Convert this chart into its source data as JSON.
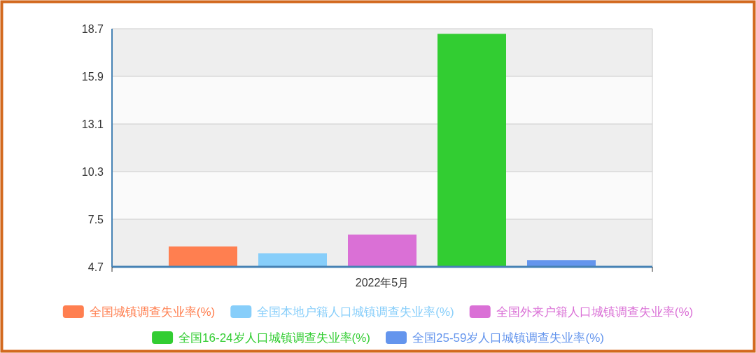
{
  "chart_data": {
    "type": "bar",
    "categories": [
      "2022年5月"
    ],
    "series": [
      {
        "name": "全国城镇调查失业率(%)",
        "color": "#ff7f50",
        "values": [
          5.9
        ]
      },
      {
        "name": "全国本地户籍人口城镇调查失业率(%)",
        "color": "#87cefa",
        "values": [
          5.5
        ]
      },
      {
        "name": "全国外来户籍人口城镇调查失业率(%)",
        "color": "#da70d6",
        "values": [
          6.6
        ]
      },
      {
        "name": "全国16-24岁人口城镇调查失业率(%)",
        "color": "#32cd32",
        "values": [
          18.4
        ]
      },
      {
        "name": "全国25-59岁人口城镇调查失业率(%)",
        "color": "#6495ed",
        "values": [
          5.1
        ]
      }
    ],
    "ylim": [
      4.7,
      18.7
    ],
    "yticks": [
      4.7,
      7.5,
      10.3,
      13.1,
      15.9,
      18.7
    ],
    "grid": "y",
    "legend": "bottom"
  }
}
